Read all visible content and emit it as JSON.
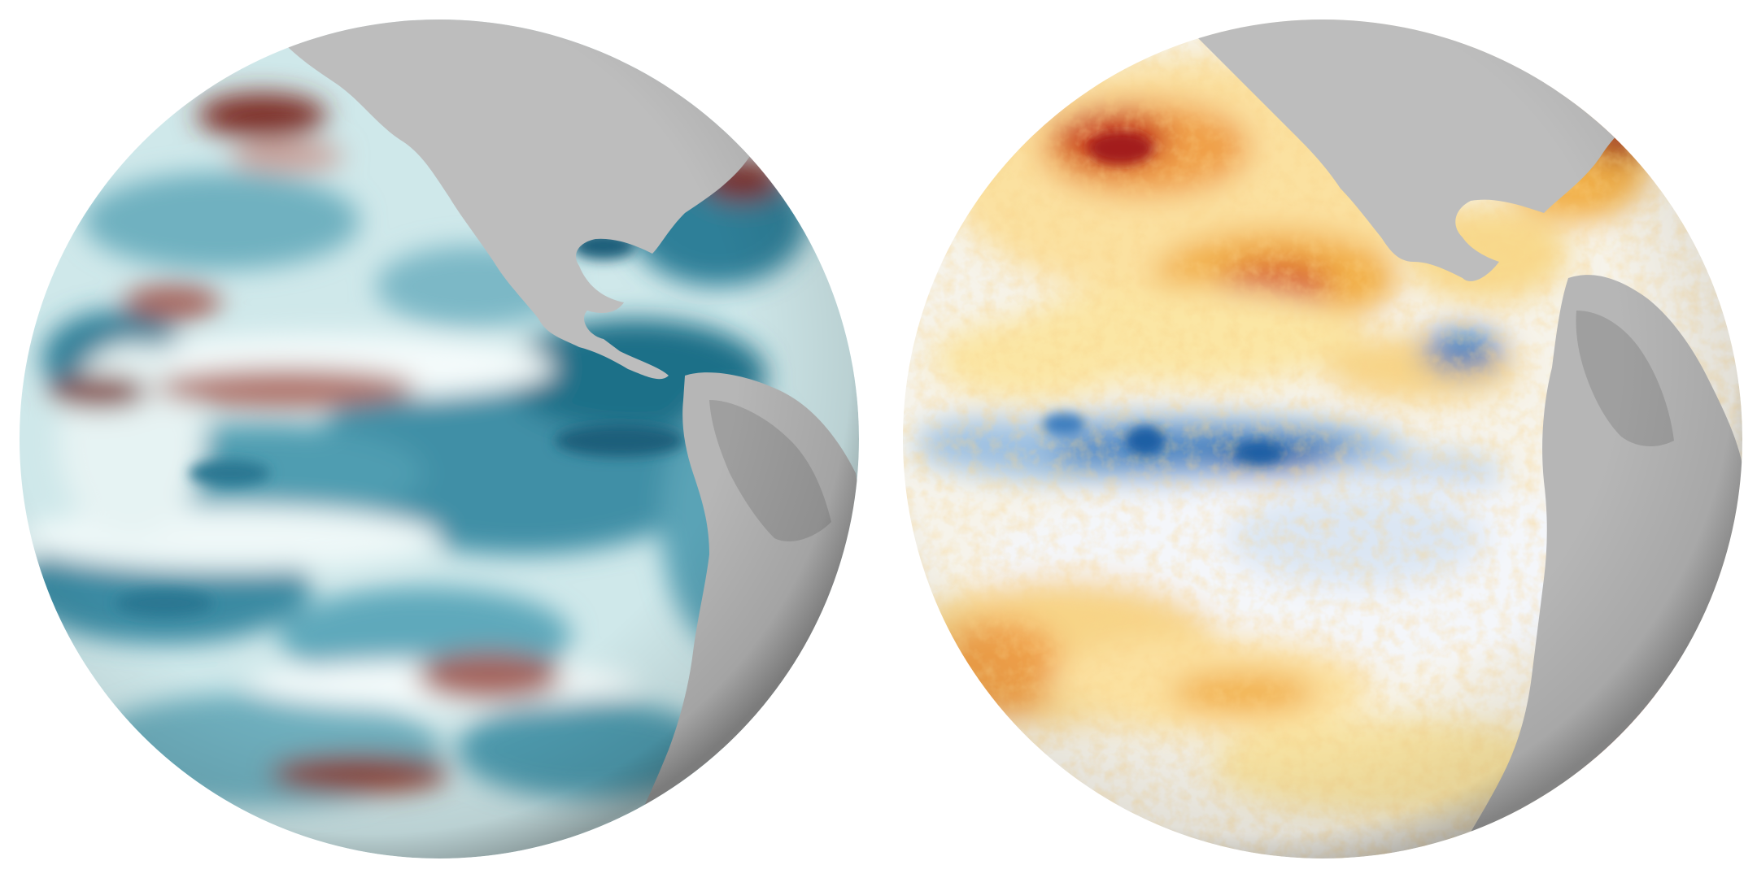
{
  "scene": {
    "description_free": true,
    "panels": [
      {
        "id": "left",
        "subject": "globe-sea-surface-height-anomaly",
        "palette": {
          "low": "#0f5f78",
          "mid_low": "#3f8fa6",
          "neutral": "#dcefee",
          "white": "#f4fbfb",
          "high": "#7e2f26",
          "mid_high": "#c9a39c",
          "land": "#bfbfbf",
          "land_dark": "#8e8e8e"
        }
      },
      {
        "id": "right",
        "subject": "globe-sea-surface-temperature-anomaly",
        "palette": {
          "cold": "#1f5fa4",
          "cool": "#8fb6dc",
          "neutral": "#f5f7fa",
          "warm_light": "#fbe6a4",
          "warm": "#f2b04a",
          "hot": "#d6502a",
          "very_hot": "#a31b1b",
          "land": "#bdbdbd",
          "land_dark": "#8e8e8e"
        }
      }
    ]
  }
}
